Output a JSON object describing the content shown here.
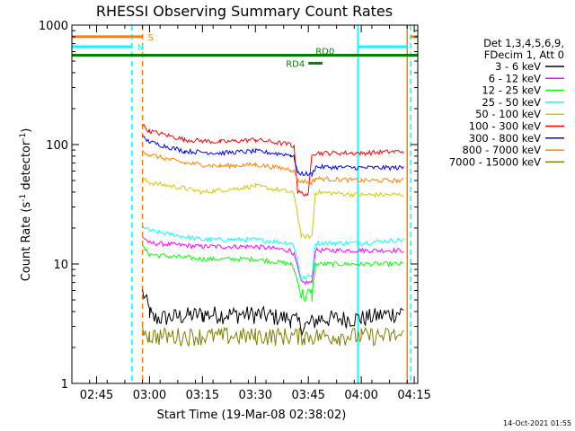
{
  "chart_data": {
    "type": "line",
    "title": "RHESSI Observing Summary Count Rates",
    "xlabel": "Start Time (19-Mar-08 02:38:02)",
    "ylabel_main": "Count Rate (s",
    "ylabel_sup1": "-1",
    "ylabel_mid": " detector",
    "ylabel_sup2": "-1",
    "ylabel_end": ")",
    "yscale": "log",
    "ylim": [
      1,
      1000
    ],
    "xlim": [
      "02:38",
      "04:16"
    ],
    "y_ticks": [
      {
        "value": 1,
        "label": "1"
      },
      {
        "value": 10,
        "label": "10"
      },
      {
        "value": 100,
        "label": "100"
      },
      {
        "value": 1000,
        "label": "1000"
      }
    ],
    "x_ticks": [
      {
        "value": "02:45",
        "label": "02:45"
      },
      {
        "value": "03:00",
        "label": "03:00"
      },
      {
        "value": "03:15",
        "label": "03:15"
      },
      {
        "value": "03:30",
        "label": "03:30"
      },
      {
        "value": "03:45",
        "label": "03:45"
      },
      {
        "value": "04:00",
        "label": "04:00"
      },
      {
        "value": "04:15",
        "label": "04:15"
      }
    ],
    "legend": {
      "placement": "right",
      "header_1": "Det 1,3,4,5,6,9,",
      "header_2": "FDecim 1, Att 0"
    },
    "series": [
      {
        "name": "3 - 6 keV",
        "color": "#000000",
        "points": [
          [
            "02:58",
            6
          ],
          [
            "03:00",
            4
          ],
          [
            "03:01",
            3.5
          ],
          [
            "03:15",
            3.8
          ],
          [
            "03:30",
            3.8
          ],
          [
            "03:40",
            3.5
          ],
          [
            "03:44",
            3
          ],
          [
            "03:48",
            3.5
          ],
          [
            "04:00",
            3.5
          ],
          [
            "04:12",
            4
          ]
        ]
      },
      {
        "name": "6 - 12 keV",
        "color": "#ff00ff",
        "points": [
          [
            "02:58",
            17
          ],
          [
            "03:00",
            15
          ],
          [
            "03:15",
            14
          ],
          [
            "03:30",
            14
          ],
          [
            "03:40",
            13
          ],
          [
            "03:41",
            12
          ],
          [
            "03:43",
            7
          ],
          [
            "03:46",
            7
          ],
          [
            "03:47",
            13
          ],
          [
            "04:00",
            13
          ],
          [
            "04:12",
            13
          ]
        ]
      },
      {
        "name": "12 - 25 keV",
        "color": "#00ff00",
        "points": [
          [
            "02:58",
            14
          ],
          [
            "03:00",
            12
          ],
          [
            "03:15",
            11
          ],
          [
            "03:30",
            11
          ],
          [
            "03:40",
            10
          ],
          [
            "03:41",
            9
          ],
          [
            "03:43",
            5.5
          ],
          [
            "03:46",
            5.5
          ],
          [
            "03:47",
            10
          ],
          [
            "04:00",
            10
          ],
          [
            "04:12",
            10
          ]
        ]
      },
      {
        "name": "25 - 50 keV",
        "color": "#00ffff",
        "points": [
          [
            "02:58",
            21
          ],
          [
            "03:00",
            19
          ],
          [
            "03:15",
            16
          ],
          [
            "03:30",
            16
          ],
          [
            "03:40",
            15
          ],
          [
            "03:41",
            14
          ],
          [
            "03:43",
            7.5
          ],
          [
            "03:46",
            8
          ],
          [
            "03:47",
            15
          ],
          [
            "04:00",
            15
          ],
          [
            "04:12",
            16
          ]
        ]
      },
      {
        "name": "50 - 100 keV",
        "color": "#d4c800",
        "points": [
          [
            "02:58",
            52
          ],
          [
            "03:00",
            48
          ],
          [
            "03:10",
            43
          ],
          [
            "03:15",
            40
          ],
          [
            "03:25",
            43
          ],
          [
            "03:30",
            45
          ],
          [
            "03:40",
            40
          ],
          [
            "03:41",
            38
          ],
          [
            "03:43",
            17
          ],
          [
            "03:46",
            17
          ],
          [
            "03:47",
            40
          ],
          [
            "04:00",
            38
          ],
          [
            "04:12",
            38
          ]
        ]
      },
      {
        "name": "100 - 300 keV",
        "color": "#ff0000",
        "points": [
          [
            "02:58",
            145
          ],
          [
            "03:00",
            130
          ],
          [
            "03:10",
            110
          ],
          [
            "03:20",
            105
          ],
          [
            "03:30",
            110
          ],
          [
            "03:40",
            100
          ],
          [
            "03:41",
            95
          ],
          [
            "03:42",
            40
          ],
          [
            "03:45",
            38
          ],
          [
            "03:46",
            85
          ],
          [
            "04:00",
            85
          ],
          [
            "04:12",
            88
          ]
        ]
      },
      {
        "name": "300 - 800 keV",
        "color": "#0000ff",
        "points": [
          [
            "02:58",
            115
          ],
          [
            "03:00",
            105
          ],
          [
            "03:10",
            88
          ],
          [
            "03:20",
            85
          ],
          [
            "03:30",
            88
          ],
          [
            "03:40",
            82
          ],
          [
            "03:41",
            78
          ],
          [
            "03:42",
            58
          ],
          [
            "03:46",
            56
          ],
          [
            "03:47",
            65
          ],
          [
            "04:00",
            64
          ],
          [
            "04:12",
            64
          ]
        ]
      },
      {
        "name": "800 - 7000 keV",
        "color": "#ff8000",
        "points": [
          [
            "02:58",
            90
          ],
          [
            "03:00",
            82
          ],
          [
            "03:10",
            70
          ],
          [
            "03:20",
            66
          ],
          [
            "03:30",
            68
          ],
          [
            "03:40",
            62
          ],
          [
            "03:41",
            60
          ],
          [
            "03:42",
            50
          ],
          [
            "03:46",
            48
          ],
          [
            "03:47",
            52
          ],
          [
            "04:00",
            50
          ],
          [
            "04:12",
            50
          ]
        ]
      },
      {
        "name": "7000 - 15000 keV",
        "color": "#808000",
        "points": [
          [
            "02:58",
            3
          ],
          [
            "03:00",
            2.5
          ],
          [
            "03:15",
            2.5
          ],
          [
            "03:30",
            2.5
          ],
          [
            "03:44",
            2.5
          ],
          [
            "04:00",
            2.5
          ],
          [
            "04:12",
            2.5
          ]
        ]
      }
    ],
    "events": [
      {
        "label": "S",
        "color": "#ff8000",
        "at": "04:14",
        "row_y": 800,
        "style": "solid"
      },
      {
        "label": "N",
        "color": "#00ffff",
        "at": "02:55",
        "row_y": 660,
        "style": "dashed"
      },
      {
        "label": "RD0",
        "color": "#008000",
        "from": "02:38",
        "to": "04:16",
        "row_y": 560
      },
      {
        "label": "RD4",
        "color": "#008000",
        "from": "03:45",
        "to": "03:49",
        "row_y": 480
      }
    ],
    "vertical_markers": [
      {
        "at": "02:55",
        "color": "#00ffff",
        "style": "dashed"
      },
      {
        "at": "02:58",
        "color": "#ff8000",
        "style": "dashed"
      },
      {
        "at": "03:59",
        "color": "#00ffff",
        "style": "solid"
      },
      {
        "at": "04:13",
        "color": "#ff8000",
        "style": "solid"
      },
      {
        "at": "04:14",
        "color": "#00ffff",
        "style": "dashed"
      }
    ],
    "footer_stamp": "14-Oct-2021 01:55"
  }
}
